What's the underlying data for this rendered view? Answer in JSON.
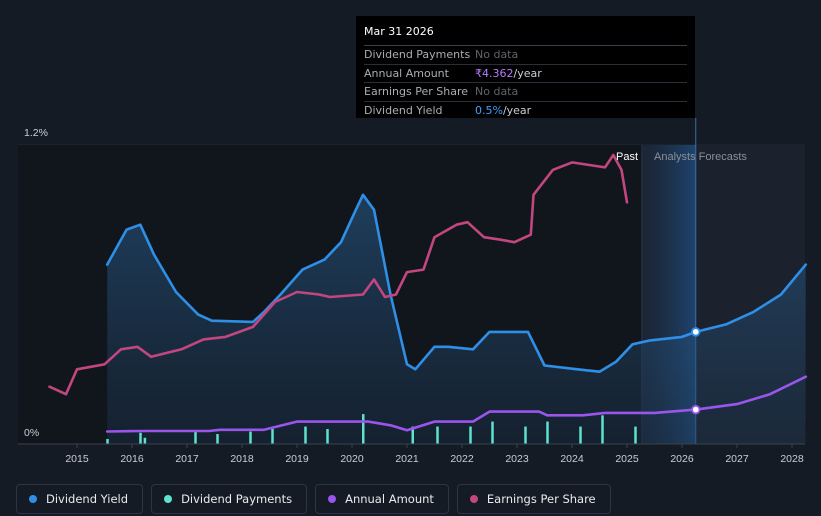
{
  "tooltip": {
    "date": "Mar 31 2026",
    "rows": [
      {
        "label": "Dividend Payments",
        "value": "No data"
      },
      {
        "label": "Annual Amount",
        "value": "₹4.362",
        "unit": "/year"
      },
      {
        "label": "Earnings Per Share",
        "value": "No data"
      },
      {
        "label": "Dividend Yield",
        "value": "0.5%",
        "unit": "/year"
      }
    ]
  },
  "legend": [
    {
      "label": "Dividend Yield",
      "color": "#2f8fe6"
    },
    {
      "label": "Dividend Payments",
      "color": "#5fe0d0"
    },
    {
      "label": "Annual Amount",
      "color": "#9a55ec"
    },
    {
      "label": "Earnings Per Share",
      "color": "#c2467f"
    }
  ],
  "chart_data": {
    "type": "line",
    "title": "",
    "xlabel": "",
    "ylabel": "",
    "xlim": [
      2014.5,
      2028.2
    ],
    "ylim": [
      0,
      1.2
    ],
    "y_tick_labels": [
      "0%",
      "1.2%"
    ],
    "x_ticks": [
      2015,
      2016,
      2017,
      2018,
      2019,
      2020,
      2021,
      2022,
      2023,
      2024,
      2025,
      2026,
      2027,
      2028
    ],
    "past_label": "Past",
    "forecast_label": "Analysts Forecasts",
    "forecast_start": 2025.27,
    "cursor_x": 2026.25,
    "series": [
      {
        "name": "Dividend Yield",
        "color": "#2f8fe6",
        "points": [
          [
            2015.55,
            0.72
          ],
          [
            2015.9,
            0.86
          ],
          [
            2016.15,
            0.88
          ],
          [
            2016.4,
            0.76
          ],
          [
            2016.8,
            0.61
          ],
          [
            2017.2,
            0.52
          ],
          [
            2017.45,
            0.495
          ],
          [
            2018.2,
            0.49
          ],
          [
            2018.4,
            0.53
          ],
          [
            2018.7,
            0.6
          ],
          [
            2019.1,
            0.7
          ],
          [
            2019.5,
            0.74
          ],
          [
            2019.8,
            0.81
          ],
          [
            2020.05,
            0.93
          ],
          [
            2020.2,
            1.0
          ],
          [
            2020.4,
            0.94
          ],
          [
            2020.7,
            0.6
          ],
          [
            2021.0,
            0.32
          ],
          [
            2021.15,
            0.3
          ],
          [
            2021.5,
            0.39
          ],
          [
            2021.75,
            0.39
          ],
          [
            2022.2,
            0.38
          ],
          [
            2022.5,
            0.45
          ],
          [
            2023.2,
            0.45
          ],
          [
            2023.5,
            0.315
          ],
          [
            2024.1,
            0.3
          ],
          [
            2024.5,
            0.29
          ],
          [
            2024.8,
            0.33
          ],
          [
            2025.1,
            0.4
          ],
          [
            2025.4,
            0.415
          ],
          [
            2026.0,
            0.43
          ],
          [
            2026.25,
            0.45
          ],
          [
            2026.8,
            0.48
          ],
          [
            2027.3,
            0.53
          ],
          [
            2027.8,
            0.6
          ],
          [
            2028.25,
            0.72
          ]
        ]
      },
      {
        "name": "Earnings Per Share",
        "color": "#c2467f",
        "points": [
          [
            2014.5,
            0.23
          ],
          [
            2014.8,
            0.2
          ],
          [
            2015.0,
            0.3
          ],
          [
            2015.5,
            0.32
          ],
          [
            2015.8,
            0.38
          ],
          [
            2016.1,
            0.39
          ],
          [
            2016.35,
            0.35
          ],
          [
            2016.9,
            0.38
          ],
          [
            2017.3,
            0.42
          ],
          [
            2017.7,
            0.43
          ],
          [
            2018.2,
            0.47
          ],
          [
            2018.6,
            0.57
          ],
          [
            2019.0,
            0.61
          ],
          [
            2019.4,
            0.6
          ],
          [
            2019.6,
            0.59
          ],
          [
            2020.2,
            0.6
          ],
          [
            2020.4,
            0.66
          ],
          [
            2020.6,
            0.59
          ],
          [
            2020.8,
            0.6
          ],
          [
            2021.0,
            0.69
          ],
          [
            2021.3,
            0.7
          ],
          [
            2021.5,
            0.83
          ],
          [
            2021.9,
            0.88
          ],
          [
            2022.1,
            0.89
          ],
          [
            2022.4,
            0.83
          ],
          [
            2022.7,
            0.82
          ],
          [
            2022.95,
            0.81
          ],
          [
            2023.25,
            0.84
          ],
          [
            2023.3,
            1.0
          ],
          [
            2023.65,
            1.1
          ],
          [
            2024.0,
            1.13
          ],
          [
            2024.6,
            1.11
          ],
          [
            2024.75,
            1.16
          ],
          [
            2024.9,
            1.1
          ],
          [
            2025.0,
            0.97
          ]
        ]
      },
      {
        "name": "Annual Amount",
        "color": "#9a55ec",
        "points": [
          [
            2015.55,
            0.05
          ],
          [
            2016.2,
            0.052
          ],
          [
            2017.4,
            0.052
          ],
          [
            2017.6,
            0.057
          ],
          [
            2018.4,
            0.057
          ],
          [
            2019.0,
            0.09
          ],
          [
            2019.5,
            0.09
          ],
          [
            2020.3,
            0.09
          ],
          [
            2020.7,
            0.075
          ],
          [
            2021.0,
            0.055
          ],
          [
            2021.5,
            0.09
          ],
          [
            2022.2,
            0.09
          ],
          [
            2022.5,
            0.13
          ],
          [
            2023.4,
            0.13
          ],
          [
            2023.55,
            0.115
          ],
          [
            2024.2,
            0.115
          ],
          [
            2024.6,
            0.125
          ],
          [
            2025.5,
            0.125
          ],
          [
            2026.25,
            0.138
          ],
          [
            2027.0,
            0.16
          ],
          [
            2027.6,
            0.2
          ],
          [
            2028.25,
            0.27
          ]
        ]
      }
    ],
    "dividend_payments": {
      "name": "Dividend Payments",
      "color": "#5fe0d0",
      "bars": [
        [
          2015.55,
          0.02
        ],
        [
          2016.15,
          0.045
        ],
        [
          2016.23,
          0.025
        ],
        [
          2017.15,
          0.05
        ],
        [
          2017.55,
          0.04
        ],
        [
          2018.15,
          0.05
        ],
        [
          2018.55,
          0.06
        ],
        [
          2019.15,
          0.07
        ],
        [
          2019.55,
          0.06
        ],
        [
          2020.2,
          0.12
        ],
        [
          2021.1,
          0.07
        ],
        [
          2021.55,
          0.07
        ],
        [
          2022.15,
          0.07
        ],
        [
          2022.55,
          0.09
        ],
        [
          2023.15,
          0.07
        ],
        [
          2023.55,
          0.09
        ],
        [
          2024.15,
          0.07
        ],
        [
          2024.55,
          0.115
        ],
        [
          2025.15,
          0.07
        ]
      ]
    }
  }
}
